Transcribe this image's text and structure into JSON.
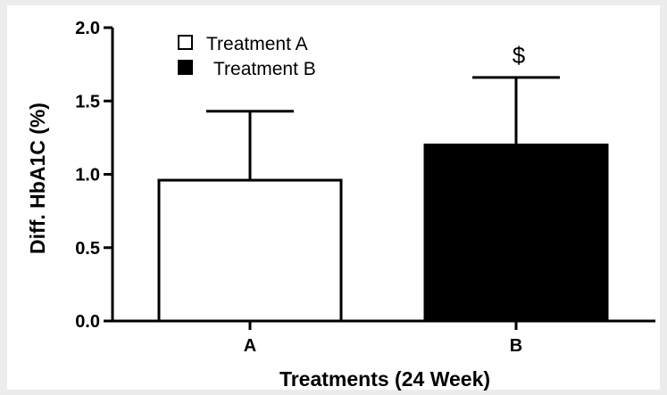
{
  "chart_data": {
    "type": "bar",
    "categories": [
      "A",
      "B"
    ],
    "values": [
      0.96,
      1.2
    ],
    "error_upper": [
      1.43,
      1.66
    ],
    "bar_colors": [
      "#ffffff",
      "#000000"
    ],
    "xlabel": "Treatments (24 Week)",
    "ylabel": "Diff. HbA1C (%)",
    "ylim": [
      0,
      2.0
    ],
    "yticks": [
      "0.0",
      "0.5",
      "1.0",
      "1.5",
      "2.0"
    ],
    "legend": {
      "placement": "top-left",
      "entries": [
        {
          "label": "Treatment A",
          "color": "#ffffff"
        },
        {
          "label": "Treatment B",
          "color": "#000000"
        }
      ]
    },
    "annotations": [
      {
        "category": "B",
        "text": "$"
      }
    ],
    "grid": false
  }
}
